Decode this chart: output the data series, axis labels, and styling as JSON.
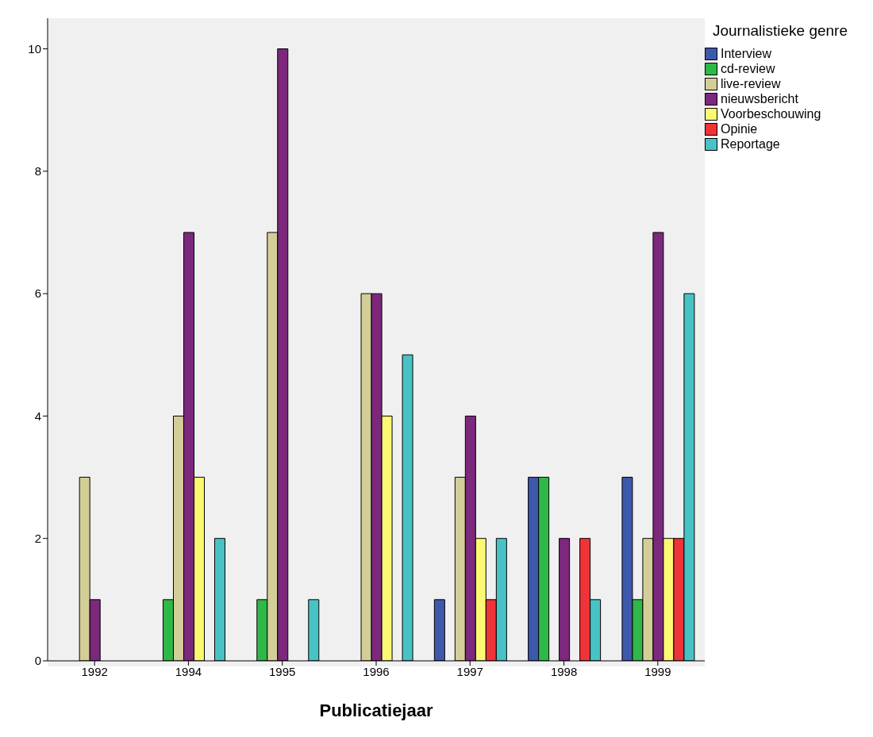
{
  "chart_data": {
    "type": "bar",
    "xlabel": "Publicatiejaar",
    "legend_title": "Journalistieke genre",
    "categories": [
      "1992",
      "1994",
      "1995",
      "1996",
      "1997",
      "1998",
      "1999"
    ],
    "series": [
      {
        "name": "Interview",
        "color": "#3e58ac",
        "values": [
          null,
          null,
          null,
          null,
          1,
          3,
          3
        ]
      },
      {
        "name": "cd-review",
        "color": "#2eb848",
        "values": [
          null,
          1,
          1,
          null,
          null,
          3,
          1
        ]
      },
      {
        "name": "live-review",
        "color": "#d3ce97",
        "values": [
          3,
          4,
          7,
          6,
          3,
          null,
          2
        ]
      },
      {
        "name": "nieuwsbericht",
        "color": "#7c287d",
        "values": [
          1,
          7,
          10,
          6,
          4,
          2,
          7
        ]
      },
      {
        "name": "Voorbeschouwing",
        "color": "#fbf873",
        "values": [
          null,
          3,
          null,
          4,
          2,
          null,
          2
        ]
      },
      {
        "name": "Opinie",
        "color": "#ef3338",
        "values": [
          null,
          null,
          null,
          null,
          1,
          2,
          2
        ]
      },
      {
        "name": "Reportage",
        "color": "#48c2c5",
        "values": [
          null,
          2,
          1,
          5,
          2,
          1,
          6
        ]
      }
    ],
    "ylim": [
      0,
      10.5
    ],
    "yticks": [
      0,
      2,
      4,
      6,
      8,
      10
    ],
    "grid": false,
    "legend": "right"
  }
}
